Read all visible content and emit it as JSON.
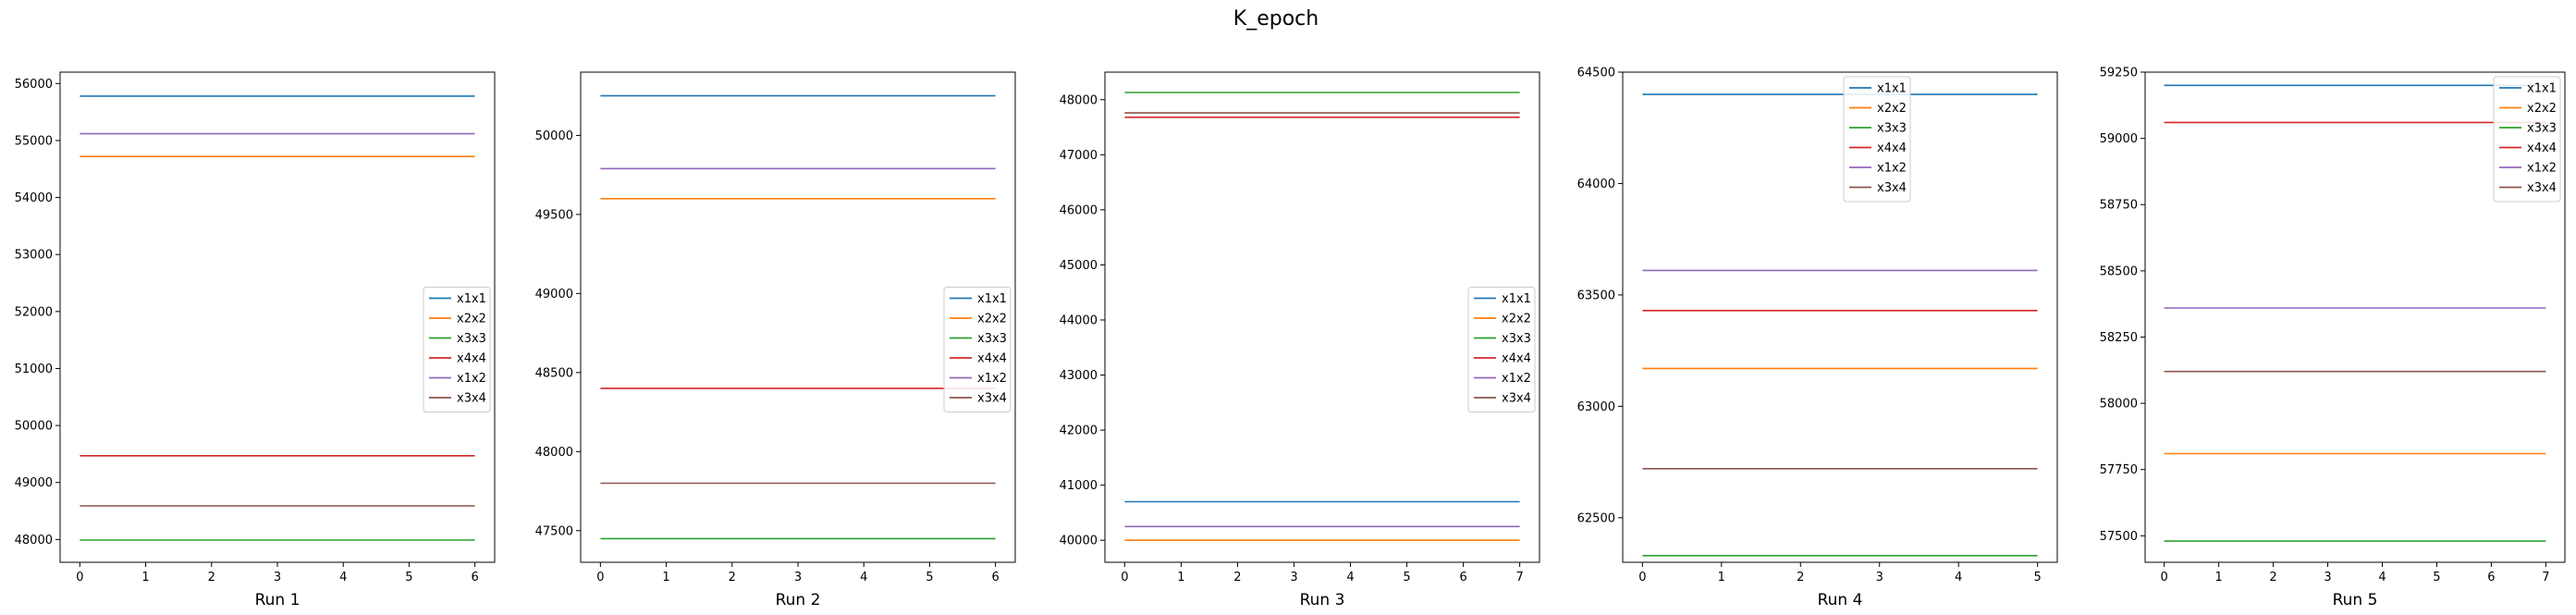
{
  "suptitle": "K_epoch",
  "series_colors": {
    "x1x1": "#1f77b4",
    "x2x2": "#ff7f0e",
    "x3x3": "#2ca02c",
    "x4x4": "#d62728",
    "x1x2": "#9467bd",
    "x3x4": "#8c564b"
  },
  "chart_data": [
    {
      "type": "line",
      "xlabel": "Run 1",
      "x": [
        0,
        1,
        2,
        3,
        4,
        5,
        6
      ],
      "ylim": [
        47600,
        56200
      ],
      "yticks": [
        48000,
        49000,
        50000,
        51000,
        52000,
        53000,
        54000,
        55000,
        56000
      ],
      "legend_placement": "center-right",
      "grid": false,
      "series": [
        {
          "name": "x1x1",
          "values": [
            55780,
            55780,
            55780,
            55780,
            55780,
            55780,
            55780
          ]
        },
        {
          "name": "x2x2",
          "values": [
            54720,
            54720,
            54720,
            54720,
            54720,
            54720,
            54720
          ]
        },
        {
          "name": "x3x3",
          "values": [
            47990,
            47990,
            47990,
            47990,
            47990,
            47990,
            47990
          ]
        },
        {
          "name": "x4x4",
          "values": [
            49470,
            49470,
            49470,
            49470,
            49470,
            49470,
            49470
          ]
        },
        {
          "name": "x1x2",
          "values": [
            55120,
            55120,
            55120,
            55120,
            55120,
            55120,
            55120
          ]
        },
        {
          "name": "x3x4",
          "values": [
            48590,
            48590,
            48590,
            48590,
            48590,
            48590,
            48590
          ]
        }
      ]
    },
    {
      "type": "line",
      "xlabel": "Run 2",
      "x": [
        0,
        1,
        2,
        3,
        4,
        5,
        6
      ],
      "ylim": [
        47300,
        50400
      ],
      "yticks": [
        47500,
        48000,
        48500,
        49000,
        49500,
        50000
      ],
      "legend_placement": "center-right",
      "grid": false,
      "series": [
        {
          "name": "x1x1",
          "values": [
            50250,
            50250,
            50250,
            50250,
            50250,
            50250,
            50250
          ]
        },
        {
          "name": "x2x2",
          "values": [
            49600,
            49600,
            49600,
            49600,
            49600,
            49600,
            49600
          ]
        },
        {
          "name": "x3x3",
          "values": [
            47450,
            47450,
            47450,
            47450,
            47450,
            47450,
            47450
          ]
        },
        {
          "name": "x4x4",
          "values": [
            48400,
            48400,
            48400,
            48400,
            48400,
            48400,
            48400
          ]
        },
        {
          "name": "x1x2",
          "values": [
            49790,
            49790,
            49790,
            49790,
            49790,
            49790,
            49790
          ]
        },
        {
          "name": "x3x4",
          "values": [
            47800,
            47800,
            47800,
            47800,
            47800,
            47800,
            47800
          ]
        }
      ]
    },
    {
      "type": "line",
      "xlabel": "Run 3",
      "x": [
        0,
        1,
        2,
        3,
        4,
        5,
        6,
        7
      ],
      "ylim": [
        39600,
        48500
      ],
      "yticks": [
        40000,
        41000,
        42000,
        43000,
        44000,
        45000,
        46000,
        47000,
        48000
      ],
      "legend_placement": "center-right",
      "grid": false,
      "series": [
        {
          "name": "x1x1",
          "values": [
            40700,
            40700,
            40700,
            40700,
            40700,
            40700,
            40700,
            40700
          ]
        },
        {
          "name": "x2x2",
          "values": [
            40000,
            40000,
            40000,
            40000,
            40000,
            40000,
            40000,
            40000
          ]
        },
        {
          "name": "x3x3",
          "values": [
            48130,
            48130,
            48130,
            48130,
            48130,
            48130,
            48130,
            48130
          ]
        },
        {
          "name": "x4x4",
          "values": [
            47680,
            47680,
            47680,
            47680,
            47680,
            47680,
            47680,
            47680
          ]
        },
        {
          "name": "x1x2",
          "values": [
            40250,
            40250,
            40250,
            40250,
            40250,
            40250,
            40250,
            40250
          ]
        },
        {
          "name": "x3x4",
          "values": [
            47760,
            47760,
            47760,
            47760,
            47760,
            47760,
            47760,
            47760
          ]
        }
      ]
    },
    {
      "type": "line",
      "xlabel": "Run 4",
      "x": [
        0,
        1,
        2,
        3,
        4,
        5
      ],
      "ylim": [
        62300,
        64500
      ],
      "yticks": [
        62500,
        63000,
        63500,
        64000,
        64500
      ],
      "legend_placement": "top-center",
      "grid": false,
      "series": [
        {
          "name": "x1x1",
          "values": [
            64400,
            64400,
            64400,
            64400,
            64400,
            64400
          ]
        },
        {
          "name": "x2x2",
          "values": [
            63170,
            63170,
            63170,
            63170,
            63170,
            63170
          ]
        },
        {
          "name": "x3x3",
          "values": [
            62330,
            62330,
            62330,
            62330,
            62330,
            62330
          ]
        },
        {
          "name": "x4x4",
          "values": [
            63430,
            63430,
            63430,
            63430,
            63430,
            63430
          ]
        },
        {
          "name": "x1x2",
          "values": [
            63610,
            63610,
            63610,
            63610,
            63610,
            63610
          ]
        },
        {
          "name": "x3x4",
          "values": [
            62720,
            62720,
            62720,
            62720,
            62720,
            62720
          ]
        }
      ]
    },
    {
      "type": "line",
      "xlabel": "Run 5",
      "x": [
        0,
        1,
        2,
        3,
        4,
        5,
        6,
        7
      ],
      "ylim": [
        57400,
        59250
      ],
      "yticks": [
        57500,
        57750,
        58000,
        58250,
        58500,
        58750,
        59000,
        59250
      ],
      "legend_placement": "top-right",
      "grid": false,
      "series": [
        {
          "name": "x1x1",
          "values": [
            59200,
            59200,
            59200,
            59200,
            59200,
            59200,
            59200,
            59200
          ]
        },
        {
          "name": "x2x2",
          "values": [
            57810,
            57810,
            57810,
            57810,
            57810,
            57810,
            57810,
            57810
          ]
        },
        {
          "name": "x3x3",
          "values": [
            57480,
            57480,
            57480,
            57480,
            57480,
            57480,
            57480,
            57480
          ]
        },
        {
          "name": "x4x4",
          "values": [
            59060,
            59060,
            59060,
            59060,
            59060,
            59060,
            59060,
            59060
          ]
        },
        {
          "name": "x1x2",
          "values": [
            58360,
            58360,
            58360,
            58360,
            58360,
            58360,
            58360,
            58360
          ]
        },
        {
          "name": "x3x4",
          "values": [
            58120,
            58120,
            58120,
            58120,
            58120,
            58120,
            58120,
            58120
          ]
        }
      ]
    }
  ]
}
